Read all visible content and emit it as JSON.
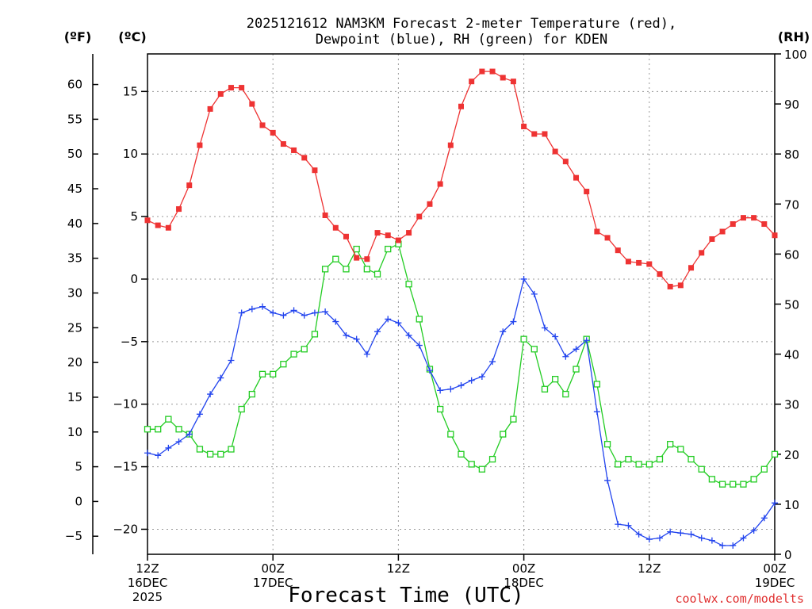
{
  "chart_data": {
    "type": "line",
    "title_line1": "2025121612 NAM3KM Forecast 2-meter Temperature (red),",
    "title_line2": "Dewpoint (blue), RH (green) for KDEN",
    "xlabel": "Forecast Time (UTC)",
    "credit": "coolwx.com/modelts",
    "unit_f": "(ºF)",
    "unit_c": "(ºC)",
    "unit_rh": "(RH)",
    "x_hours_range": [
      0,
      60
    ],
    "x_ticks": [
      {
        "hour": 0,
        "line1": "12Z",
        "line2": "16DEC",
        "line3": "2025"
      },
      {
        "hour": 12,
        "line1": "00Z",
        "line2": "17DEC",
        "line3": ""
      },
      {
        "hour": 24,
        "line1": "12Z",
        "line2": "",
        "line3": ""
      },
      {
        "hour": 36,
        "line1": "00Z",
        "line2": "18DEC",
        "line3": ""
      },
      {
        "hour": 48,
        "line1": "12Z",
        "line2": "",
        "line3": ""
      },
      {
        "hour": 60,
        "line1": "00Z",
        "line2": "19DEC",
        "line3": ""
      }
    ],
    "y_celsius_range": [
      -22,
      18
    ],
    "y_celsius_ticks": [
      "15",
      "10",
      "5",
      "0",
      "−5",
      "−10",
      "−15",
      "−20"
    ],
    "y_fahrenheit_ticks": [
      "60",
      "55",
      "50",
      "45",
      "40",
      "35",
      "30",
      "25",
      "20",
      "15",
      "10",
      "5",
      "0",
      "−5"
    ],
    "y_rh_range": [
      0,
      100
    ],
    "y_rh_ticks": [
      "100",
      "90",
      "80",
      "70",
      "60",
      "50",
      "40",
      "30",
      "20",
      "10",
      "0"
    ],
    "series": [
      {
        "name": "2-meter Temperature",
        "unit": "C",
        "color": "#ee3333",
        "marker": "filled-square",
        "values": [
          4.7,
          4.3,
          4.1,
          5.6,
          7.5,
          10.7,
          13.6,
          14.8,
          15.3,
          15.3,
          14.0,
          12.3,
          11.7,
          10.8,
          10.3,
          9.7,
          8.7,
          5.1,
          4.1,
          3.4,
          1.7,
          1.6,
          3.7,
          3.5,
          3.1,
          3.7,
          5.0,
          6.0,
          7.6,
          10.7,
          13.8,
          15.8,
          16.6,
          16.6,
          16.1,
          15.8,
          12.2,
          11.6,
          11.6,
          10.2,
          9.4,
          8.1,
          7.0,
          3.8,
          3.3,
          2.3,
          1.4,
          1.3,
          1.2,
          0.4,
          -0.6,
          -0.5,
          0.9,
          2.1,
          3.2,
          3.8,
          4.4,
          4.9,
          4.9,
          4.4,
          3.5
        ]
      },
      {
        "name": "Dewpoint",
        "unit": "C",
        "color": "#2244ee",
        "marker": "plus",
        "values": [
          -13.9,
          -14.1,
          -13.5,
          -13.0,
          -12.4,
          -10.8,
          -9.2,
          -7.9,
          -6.5,
          -2.7,
          -2.4,
          -2.2,
          -2.7,
          -2.9,
          -2.5,
          -2.9,
          -2.7,
          -2.6,
          -3.4,
          -4.5,
          -4.8,
          -6.0,
          -4.2,
          -3.2,
          -3.5,
          -4.5,
          -5.3,
          -7.3,
          -8.9,
          -8.8,
          -8.5,
          -8.1,
          -7.8,
          -6.6,
          -4.2,
          -3.4,
          0.0,
          -1.2,
          -3.9,
          -4.6,
          -6.2,
          -5.6,
          -4.9,
          -10.6,
          -16.1,
          -19.6,
          -19.7,
          -20.4,
          -20.8,
          -20.7,
          -20.2,
          -20.3,
          -20.4,
          -20.7,
          -20.9,
          -21.3,
          -21.3,
          -20.7,
          -20.1,
          -19.1,
          -17.9
        ]
      },
      {
        "name": "RH",
        "unit": "%",
        "color": "#22cc22",
        "marker": "open-square",
        "values": [
          25,
          25,
          27,
          25,
          24,
          21,
          20,
          20,
          21,
          29,
          32,
          36,
          36,
          38,
          40,
          41,
          44,
          57,
          59,
          57,
          61,
          57,
          56,
          61,
          62,
          54,
          47,
          37,
          29,
          24,
          20,
          18,
          17,
          19,
          24,
          27,
          43,
          41,
          33,
          35,
          32,
          37,
          43,
          34,
          22,
          18,
          19,
          18,
          18,
          19,
          22,
          21,
          19,
          17,
          15,
          14,
          14,
          14,
          15,
          17,
          20
        ]
      }
    ]
  }
}
